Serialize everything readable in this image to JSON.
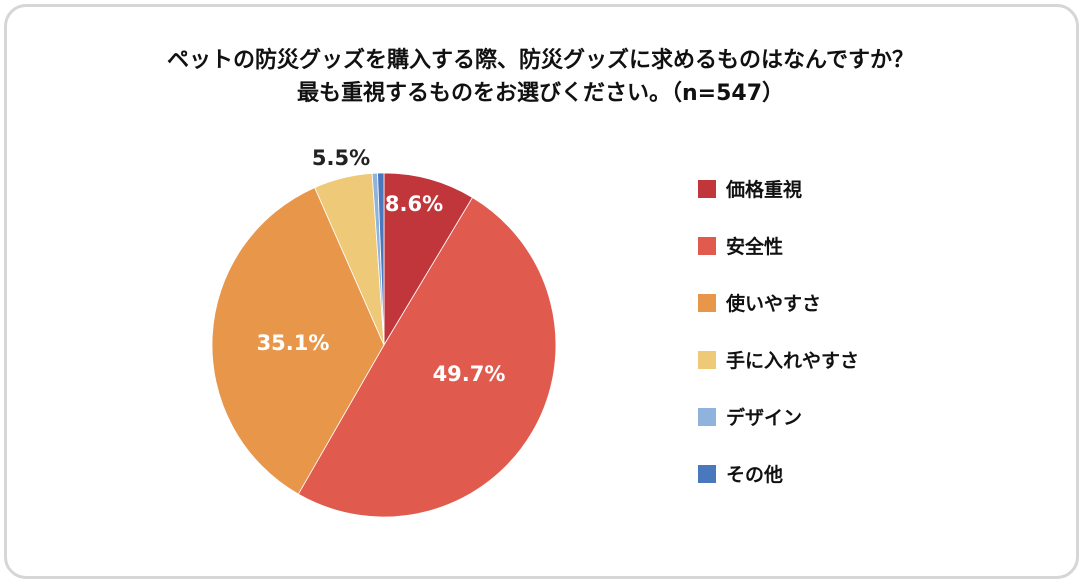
{
  "title": {
    "line1": "ペットの防災グッズを購入する際、防災グッズに求めるものはなんですか？",
    "line2": "最も重視するものをお選びください。（n=547）"
  },
  "chart_data": {
    "type": "pie",
    "title": "ペットの防災グッズを購入する際、防災グッズに求めるものはなんですか？最も重視するものをお選びください。（n=547）",
    "legend_position": "right",
    "slices": [
      {
        "label": "価格重視",
        "value": 8.6,
        "display": "8.6%",
        "color": "#c0363a"
      },
      {
        "label": "安全性",
        "value": 49.7,
        "display": "49.7%",
        "color": "#e05a4d"
      },
      {
        "label": "使いやすさ",
        "value": 35.1,
        "display": "35.1%",
        "color": "#e8964a"
      },
      {
        "label": "手に入れやすさ",
        "value": 5.5,
        "display": "5.5%",
        "color": "#edc978"
      },
      {
        "label": "デザイン",
        "value": 0.5,
        "display": "",
        "color": "#8fb3dc"
      },
      {
        "label": "その他",
        "value": 0.6,
        "display": "",
        "color": "#4a78bd"
      }
    ]
  }
}
